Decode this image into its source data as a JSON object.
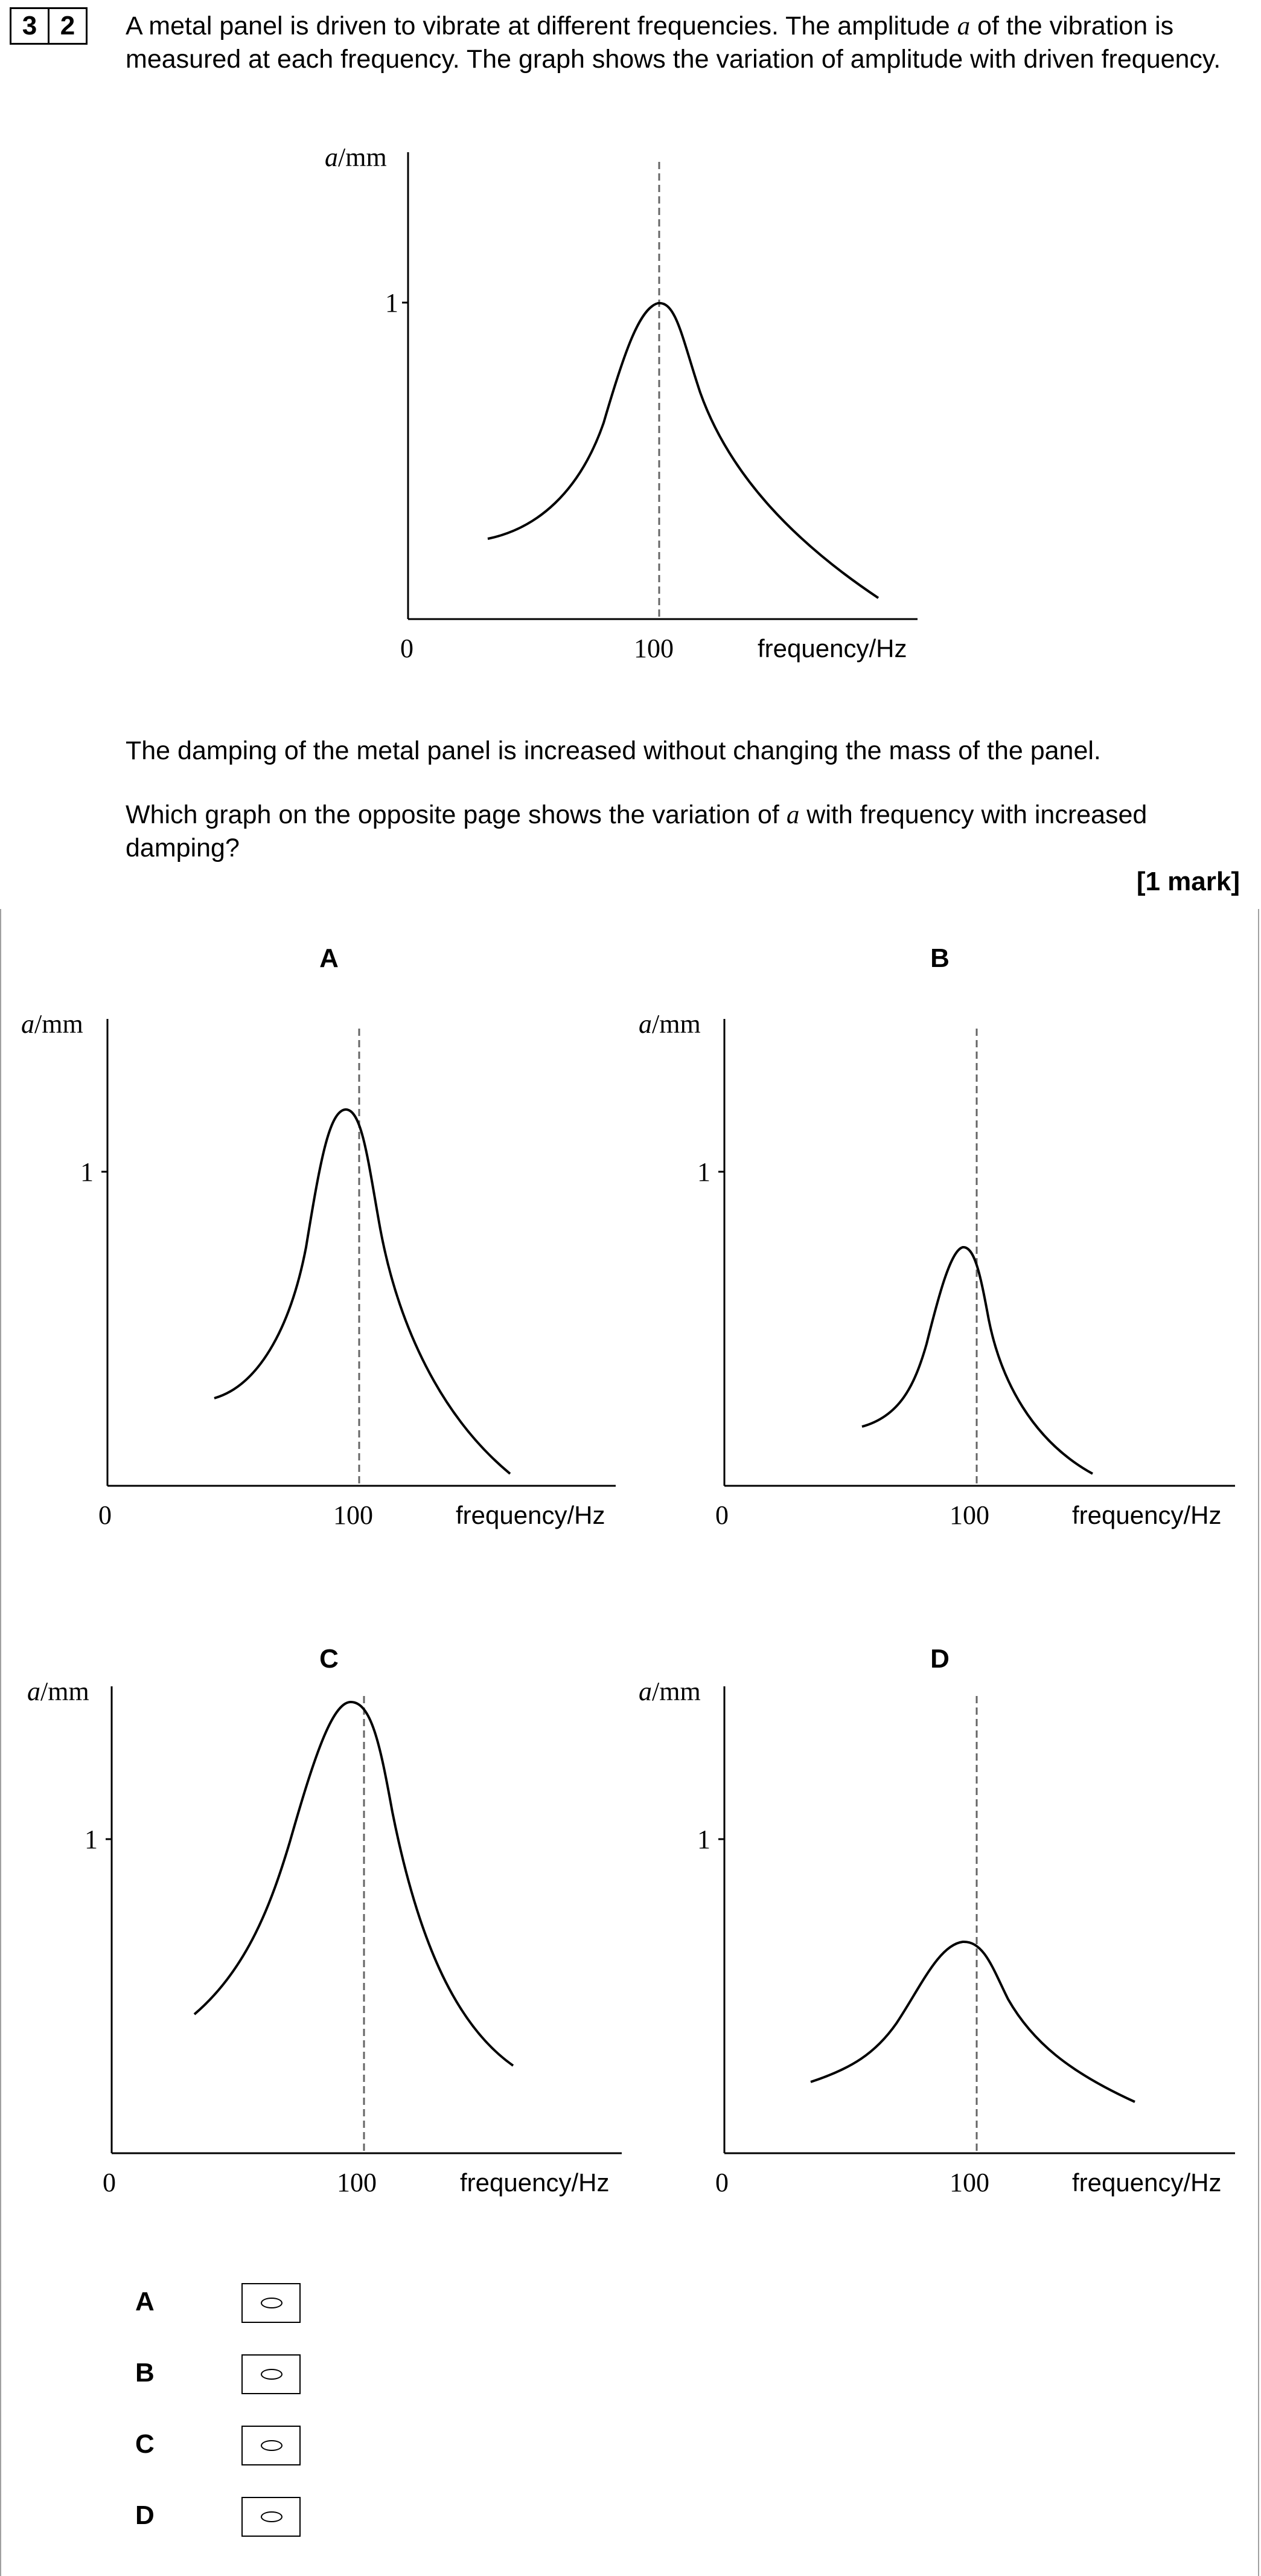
{
  "question": {
    "number_digits": [
      "3",
      "2"
    ],
    "intro_part1": "A metal panel is driven to vibrate at different frequencies.  The amplitude ",
    "intro_var": "a",
    "intro_part2": " of the vibration is measured at each frequency.  The graph shows the variation of amplitude with driven frequency.",
    "damping_sentence": "The damping of the metal panel is increased without changing the mass of the panel.",
    "ask_part1": "Which graph on the opposite page shows the variation of ",
    "ask_var": "a",
    "ask_part2": " with frequency with increased damping?",
    "marks": "[1 mark]"
  },
  "axis_text": {
    "y_var": "a",
    "y_unit": "/mm",
    "y_tick": "1",
    "origin": "0",
    "x_tick": "100",
    "x_label": "frequency/Hz"
  },
  "options": [
    {
      "letter": "A"
    },
    {
      "letter": "B"
    },
    {
      "letter": "C"
    },
    {
      "letter": "D"
    }
  ],
  "chart_data": [
    {
      "type": "line",
      "id": "original",
      "x_ticks": [
        0,
        100
      ],
      "y_ticks": [
        1
      ],
      "peak": {
        "x": 100,
        "y": 1.0
      },
      "x_range": [
        0,
        205
      ],
      "y_range": [
        0,
        1.48
      ]
    },
    {
      "type": "line",
      "id": "A",
      "title": "A",
      "x_ticks": [
        0,
        100
      ],
      "y_ticks": [
        1
      ],
      "peak": {
        "x": 95,
        "y": 1.2
      },
      "x_range": [
        0,
        205
      ],
      "y_range": [
        0,
        1.48
      ]
    },
    {
      "type": "line",
      "id": "B",
      "title": "B",
      "x_ticks": [
        0,
        100
      ],
      "y_ticks": [
        1
      ],
      "peak": {
        "x": 95,
        "y": 0.77
      },
      "x_range": [
        0,
        205
      ],
      "y_range": [
        0,
        1.48
      ]
    },
    {
      "type": "line",
      "id": "C",
      "title": "C",
      "x_ticks": [
        0,
        100
      ],
      "y_ticks": [
        1
      ],
      "peak": {
        "x": 96,
        "y": 1.42
      },
      "x_range": [
        0,
        205
      ],
      "y_range": [
        0,
        1.48
      ]
    },
    {
      "type": "line",
      "id": "D",
      "title": "D",
      "x_ticks": [
        0,
        100
      ],
      "y_ticks": [
        1
      ],
      "peak": {
        "x": 95,
        "y": 0.68
      },
      "x_range": [
        0,
        205
      ],
      "y_range": [
        0,
        1.48
      ]
    }
  ]
}
